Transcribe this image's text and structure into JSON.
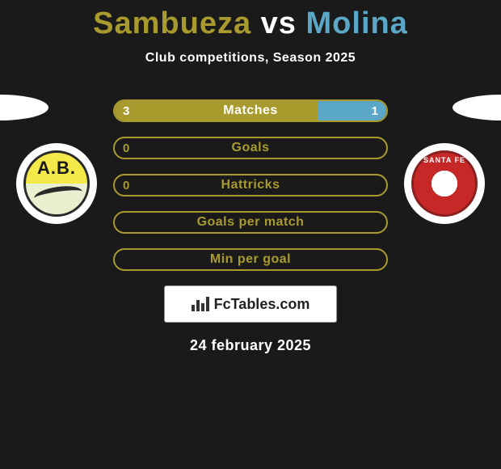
{
  "title": {
    "player1": "Sambueza",
    "vs": "vs",
    "player2": "Molina",
    "player1_color": "#a99a2e",
    "player2_color": "#5aa7c7"
  },
  "subtitle": "Club competitions, Season 2025",
  "team_left": {
    "abbr": "A.B.",
    "color": "#a99a2e",
    "badge_top_color": "#f5e94a",
    "badge_bottom_color": "#e8f0d0"
  },
  "team_right": {
    "arc_text": "SANTA FE",
    "color": "#5aa7c7",
    "badge_ring_color": "#c62828"
  },
  "bars": [
    {
      "label": "Matches",
      "left_value": "3",
      "right_value": "1",
      "left_pct": 75,
      "right_pct": 25,
      "border_color": "#a99a2e",
      "left_fill": "#a99a2e",
      "right_fill": "#5aa7c7",
      "label_color": "#ffffff",
      "val_color": "#ffffff"
    },
    {
      "label": "Goals",
      "left_value": "0",
      "right_value": "",
      "left_pct": 0,
      "right_pct": 0,
      "border_color": "#a99a2e",
      "left_fill": "transparent",
      "right_fill": "transparent",
      "label_color": "#a99a2e",
      "val_color": "#a99a2e"
    },
    {
      "label": "Hattricks",
      "left_value": "0",
      "right_value": "",
      "left_pct": 0,
      "right_pct": 0,
      "border_color": "#a99a2e",
      "left_fill": "transparent",
      "right_fill": "transparent",
      "label_color": "#a99a2e",
      "val_color": "#a99a2e"
    },
    {
      "label": "Goals per match",
      "left_value": "",
      "right_value": "",
      "left_pct": 0,
      "right_pct": 0,
      "border_color": "#a99a2e",
      "left_fill": "transparent",
      "right_fill": "transparent",
      "label_color": "#a99a2e",
      "val_color": "#a99a2e"
    },
    {
      "label": "Min per goal",
      "left_value": "",
      "right_value": "",
      "left_pct": 0,
      "right_pct": 0,
      "border_color": "#a99a2e",
      "left_fill": "transparent",
      "right_fill": "transparent",
      "label_color": "#a99a2e",
      "val_color": "#a99a2e"
    }
  ],
  "brand": "FcTables.com",
  "date": "24 february 2025",
  "background_color": "#1a1a1a",
  "spotlight_color": "#ffffff"
}
